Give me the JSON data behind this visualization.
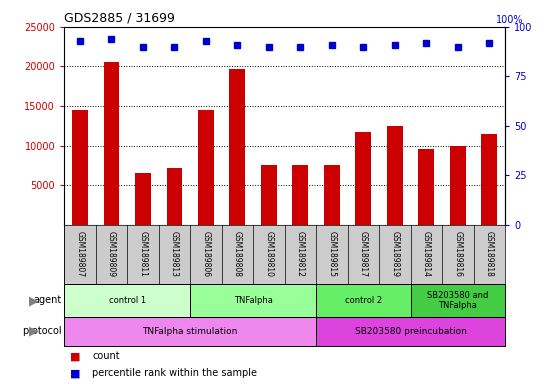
{
  "title": "GDS2885 / 31699",
  "samples": [
    "GSM189807",
    "GSM189809",
    "GSM189811",
    "GSM189813",
    "GSM189806",
    "GSM189808",
    "GSM189810",
    "GSM189812",
    "GSM189815",
    "GSM189817",
    "GSM189819",
    "GSM189814",
    "GSM189816",
    "GSM189818"
  ],
  "counts": [
    14500,
    20500,
    6500,
    7200,
    14500,
    19700,
    7500,
    7600,
    7600,
    11700,
    12500,
    9500,
    10000,
    11500
  ],
  "percentile_ranks": [
    93,
    94,
    90,
    90,
    93,
    91,
    90,
    90,
    91,
    90,
    91,
    92,
    90,
    92
  ],
  "agent_groups": [
    {
      "label": "control 1",
      "start": 0,
      "end": 4,
      "color": "#ccffcc"
    },
    {
      "label": "TNFalpha",
      "start": 4,
      "end": 8,
      "color": "#99ff99"
    },
    {
      "label": "control 2",
      "start": 8,
      "end": 11,
      "color": "#66ee66"
    },
    {
      "label": "SB203580 and\nTNFalpha",
      "start": 11,
      "end": 14,
      "color": "#44cc44"
    }
  ],
  "protocol_groups": [
    {
      "label": "TNFalpha stimulation",
      "start": 0,
      "end": 8,
      "color": "#ee88ee"
    },
    {
      "label": "SB203580 preincubation",
      "start": 8,
      "end": 14,
      "color": "#dd44dd"
    }
  ],
  "bar_color": "#cc0000",
  "dot_color": "#0000cc",
  "ylim_left": [
    0,
    25000
  ],
  "ylim_right": [
    0,
    100
  ],
  "yticks_left": [
    5000,
    10000,
    15000,
    20000,
    25000
  ],
  "yticks_right": [
    0,
    25,
    50,
    75,
    100
  ],
  "grid_values": [
    5000,
    10000,
    15000,
    20000
  ],
  "bar_color_left": "#cc0000",
  "bar_color_right": "#0000cc",
  "tick_bg_color": "#cccccc"
}
